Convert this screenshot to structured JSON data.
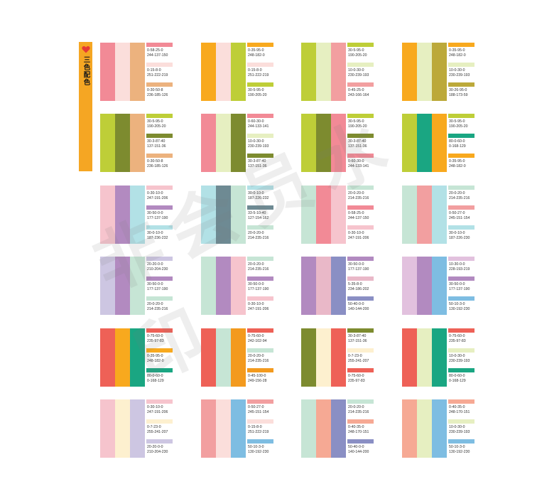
{
  "sidebar": {
    "title": "三色配色",
    "icon": "heart-icon",
    "icon_color": "#e53935",
    "bg": "#f5a623"
  },
  "watermark": "非会员水印",
  "cards": [
    {
      "strips": [
        "#f28a96",
        "#fbdedb",
        "#ecb27e"
      ],
      "colors": [
        {
          "bar": "#f28a96",
          "cmyk": "0-58-25-0",
          "rgb": "244-137-150"
        },
        {
          "bar": "#fbdedb",
          "cmyk": "0-15-8-0",
          "rgb": "251-222-219"
        },
        {
          "bar": "#ecb27e",
          "cmyk": "0-30-50-8",
          "rgb": "236-185-126"
        }
      ]
    },
    {
      "strips": [
        "#f8a91e",
        "#fbdedb",
        "#bece38"
      ],
      "colors": [
        {
          "bar": "#f8a91e",
          "cmyk": "0-35-95-0",
          "rgb": "248-182-0"
        },
        {
          "bar": "#fbdedb",
          "cmyk": "0-15-8-0",
          "rgb": "251-222-219"
        },
        {
          "bar": "#bece38",
          "cmyk": "30-5-95-0",
          "rgb": "190-205-20"
        }
      ]
    },
    {
      "strips": [
        "#bece38",
        "#e6efc1",
        "#f29fa0"
      ],
      "colors": [
        {
          "bar": "#bece38",
          "cmyk": "30-5-95-0",
          "rgb": "190-205-20"
        },
        {
          "bar": "#e6efc1",
          "cmyk": "10-0-30-0",
          "rgb": "230-239-193"
        },
        {
          "bar": "#f29fa0",
          "cmyk": "0-45-25-0",
          "rgb": "243-166-164"
        }
      ]
    },
    {
      "strips": [
        "#f8a91e",
        "#e6efc1",
        "#bca93a"
      ],
      "colors": [
        {
          "bar": "#f8a91e",
          "cmyk": "0-35-95-0",
          "rgb": "248-182-0"
        },
        {
          "bar": "#e6efc1",
          "cmyk": "10-0-30-0",
          "rgb": "230-239-193"
        },
        {
          "bar": "#bca93a",
          "cmyk": "30-26-95-0",
          "rgb": "188-173-59"
        }
      ]
    },
    {
      "strips": [
        "#bece38",
        "#7d8b2f",
        "#ecb27e"
      ],
      "colors": [
        {
          "bar": "#bece38",
          "cmyk": "30-5-95-0",
          "rgb": "190-205-20"
        },
        {
          "bar": "#7d8b2f",
          "cmyk": "30-3-87-40",
          "rgb": "137-151-36"
        },
        {
          "bar": "#ecb27e",
          "cmyk": "0-30-50-8",
          "rgb": "236-185-126"
        }
      ]
    },
    {
      "strips": [
        "#f28a96",
        "#e6efc1",
        "#7d8b2f"
      ],
      "colors": [
        {
          "bar": "#f28a96",
          "cmyk": "0-60-30-0",
          "rgb": "244-133-141"
        },
        {
          "bar": "#e6efc1",
          "cmyk": "10-0-30-0",
          "rgb": "230-239-193"
        },
        {
          "bar": "#7d8b2f",
          "cmyk": "30-3-87-40",
          "rgb": "137-151-36"
        }
      ]
    },
    {
      "strips": [
        "#bece38",
        "#7d8b2f",
        "#f28a96"
      ],
      "colors": [
        {
          "bar": "#bece38",
          "cmyk": "30-5-95-0",
          "rgb": "190-205-20"
        },
        {
          "bar": "#7d8b2f",
          "cmyk": "30-3-87-40",
          "rgb": "137-151-36"
        },
        {
          "bar": "#f28a96",
          "cmyk": "0-60-30-0",
          "rgb": "244-133-141"
        }
      ]
    },
    {
      "strips": [
        "#bece38",
        "#1aa682",
        "#f8a91e"
      ],
      "colors": [
        {
          "bar": "#bece38",
          "cmyk": "30-5-95-0",
          "rgb": "190-205-20"
        },
        {
          "bar": "#1aa682",
          "cmyk": "80-0-60-0",
          "rgb": "0-168-129"
        },
        {
          "bar": "#f8a91e",
          "cmyk": "0-35-95-0",
          "rgb": "248-182-0"
        }
      ]
    },
    {
      "strips": [
        "#f6c4cd",
        "#b28ac0",
        "#b2e1e6"
      ],
      "colors": [
        {
          "bar": "#f6c4cd",
          "cmyk": "0-30-10-0",
          "rgb": "247-191-206"
        },
        {
          "bar": "#b28ac0",
          "cmyk": "30-50-0-0",
          "rgb": "177-137-190"
        },
        {
          "bar": "#b2e1e6",
          "cmyk": "30-0-10-0",
          "rgb": "187-236-232"
        }
      ]
    },
    {
      "strips": [
        "#b2e1e6",
        "#6e8a93",
        "#c6e5d5"
      ],
      "colors": [
        {
          "bar": "#b2e1e6",
          "cmyk": "30-0-10-0",
          "rgb": "187-226-232"
        },
        {
          "bar": "#6e8a93",
          "cmyk": "33-5-10-40",
          "rgb": "127-154-162"
        },
        {
          "bar": "#c6e5d5",
          "cmyk": "20-0-20-0",
          "rgb": "214-235-216"
        }
      ]
    },
    {
      "strips": [
        "#c6e5d5",
        "#f28a96",
        "#f6c4cd"
      ],
      "colors": [
        {
          "bar": "#c6e5d5",
          "cmyk": "20-0-20-0",
          "rgb": "214-235-216"
        },
        {
          "bar": "#f28a96",
          "cmyk": "0-58-25-0",
          "rgb": "244-137-150"
        },
        {
          "bar": "#f6c4cd",
          "cmyk": "0-30-10-0",
          "rgb": "247-191-206"
        }
      ]
    },
    {
      "strips": [
        "#c6e5d5",
        "#f29fa0",
        "#b2e1e6"
      ],
      "colors": [
        {
          "bar": "#c6e5d5",
          "cmyk": "20-0-20-0",
          "rgb": "214-235-216"
        },
        {
          "bar": "#f29fa0",
          "cmyk": "0-50-27-0",
          "rgb": "245-151-154"
        },
        {
          "bar": "#b2e1e6",
          "cmyk": "30-0-10-0",
          "rgb": "187-226-230"
        }
      ]
    },
    {
      "strips": [
        "#cdc6e2",
        "#b28ac0",
        "#c6e5d5"
      ],
      "colors": [
        {
          "bar": "#cdc6e2",
          "cmyk": "20-20-0-0",
          "rgb": "210-204-230"
        },
        {
          "bar": "#b28ac0",
          "cmyk": "30-50-0-0",
          "rgb": "177-137-190"
        },
        {
          "bar": "#c6e5d5",
          "cmyk": "20-0-20-0",
          "rgb": "214-235-216"
        }
      ]
    },
    {
      "strips": [
        "#c6e5d5",
        "#b28ac0",
        "#f6c4cd"
      ],
      "colors": [
        {
          "bar": "#c6e5d5",
          "cmyk": "20-0-20-0",
          "rgb": "214-235-216"
        },
        {
          "bar": "#b28ac0",
          "cmyk": "30-50-0-0",
          "rgb": "177-137-190"
        },
        {
          "bar": "#f6c4cd",
          "cmyk": "0-30-10-0",
          "rgb": "247-191-206"
        }
      ]
    },
    {
      "strips": [
        "#b28ac0",
        "#e9b8c8",
        "#8a8fc4"
      ],
      "colors": [
        {
          "bar": "#b28ac0",
          "cmyk": "30-50-0-0",
          "rgb": "177-137-190"
        },
        {
          "bar": "#e9b8c8",
          "cmyk": "5-35-8-0",
          "rgb": "234-186-202"
        },
        {
          "bar": "#8a8fc4",
          "cmyk": "50-40-0-0",
          "rgb": "140-144-200"
        }
      ]
    },
    {
      "strips": [
        "#e2c1de",
        "#b28ac0",
        "#7ebde2"
      ],
      "colors": [
        {
          "bar": "#e2c1de",
          "cmyk": "10-30-0-0",
          "rgb": "228-193-219"
        },
        {
          "bar": "#b28ac0",
          "cmyk": "30-50-0-0",
          "rgb": "177-137-190"
        },
        {
          "bar": "#7ebde2",
          "cmyk": "50-10-3-0",
          "rgb": "130-192-230"
        }
      ]
    },
    {
      "strips": [
        "#ee6157",
        "#f8a91e",
        "#1aa682"
      ],
      "colors": [
        {
          "bar": "#ee6157",
          "cmyk": "0-75-60-0",
          "rgb": "235-97-83"
        },
        {
          "bar": "#f8a91e",
          "cmyk": "0-35-95-0",
          "rgb": "248-182-0"
        },
        {
          "bar": "#1aa682",
          "cmyk": "80-0-60-0",
          "rgb": "0-168-129"
        }
      ]
    },
    {
      "strips": [
        "#ee6157",
        "#c6e5d5",
        "#f39a1e"
      ],
      "colors": [
        {
          "bar": "#ee6157",
          "cmyk": "0-75-60-0",
          "rgb": "242-102-94"
        },
        {
          "bar": "#c6e5d5",
          "cmyk": "20-0-20-0",
          "rgb": "214-235-216"
        },
        {
          "bar": "#f39a1e",
          "cmyk": "0-45-100-0",
          "rgb": "249-156-28"
        }
      ]
    },
    {
      "strips": [
        "#7d8b2f",
        "#fdf0cf",
        "#ee6157"
      ],
      "colors": [
        {
          "bar": "#7d8b2f",
          "cmyk": "30-3-87-40",
          "rgb": "137-151-36"
        },
        {
          "bar": "#fdf0cf",
          "cmyk": "0-7-23-0",
          "rgb": "255-241-207"
        },
        {
          "bar": "#ee6157",
          "cmyk": "0-75-60-0",
          "rgb": "235-97-83"
        }
      ]
    },
    {
      "strips": [
        "#ee6157",
        "#e6efc1",
        "#1aa682"
      ],
      "colors": [
        {
          "bar": "#ee6157",
          "cmyk": "0-75-60-0",
          "rgb": "235-97-83"
        },
        {
          "bar": "#e6efc1",
          "cmyk": "10-0-30-0",
          "rgb": "230-239-193"
        },
        {
          "bar": "#1aa682",
          "cmyk": "80-0-60-0",
          "rgb": "0-168-129"
        }
      ]
    },
    {
      "strips": [
        "#f6c4cd",
        "#fdf0cf",
        "#cdc6e2"
      ],
      "colors": [
        {
          "bar": "#f6c4cd",
          "cmyk": "0-30-10-0",
          "rgb": "247-191-206"
        },
        {
          "bar": "#fdf0cf",
          "cmyk": "0-7-23-0",
          "rgb": "255-241-207"
        },
        {
          "bar": "#cdc6e2",
          "cmyk": "20-20-0-0",
          "rgb": "210-204-230"
        }
      ]
    },
    {
      "strips": [
        "#f29fa0",
        "#fbdedb",
        "#7ebde2"
      ],
      "colors": [
        {
          "bar": "#f29fa0",
          "cmyk": "0-50-27-0",
          "rgb": "245-151-154"
        },
        {
          "bar": "#fbdedb",
          "cmyk": "0-15-8-0",
          "rgb": "251-222-219"
        },
        {
          "bar": "#7ebde2",
          "cmyk": "50-10-3-0",
          "rgb": "130-192-230"
        }
      ]
    },
    {
      "strips": [
        "#c6e5d5",
        "#f6a994",
        "#8a8fc4"
      ],
      "colors": [
        {
          "bar": "#c6e5d5",
          "cmyk": "20-0-20-0",
          "rgb": "214-235-216"
        },
        {
          "bar": "#f6a994",
          "cmyk": "0-40-35-0",
          "rgb": "248-170-151"
        },
        {
          "bar": "#8a8fc4",
          "cmyk": "50-40-0-0",
          "rgb": "140-144-200"
        }
      ]
    },
    {
      "strips": [
        "#f6a994",
        "#e6efc1",
        "#7ebde2"
      ],
      "colors": [
        {
          "bar": "#f6a994",
          "cmyk": "0-40-35-0",
          "rgb": "248-170-151"
        },
        {
          "bar": "#e6efc1",
          "cmyk": "10-0-30-0",
          "rgb": "230-239-193"
        },
        {
          "bar": "#7ebde2",
          "cmyk": "50-10-3-0",
          "rgb": "130-192-230"
        }
      ]
    }
  ]
}
